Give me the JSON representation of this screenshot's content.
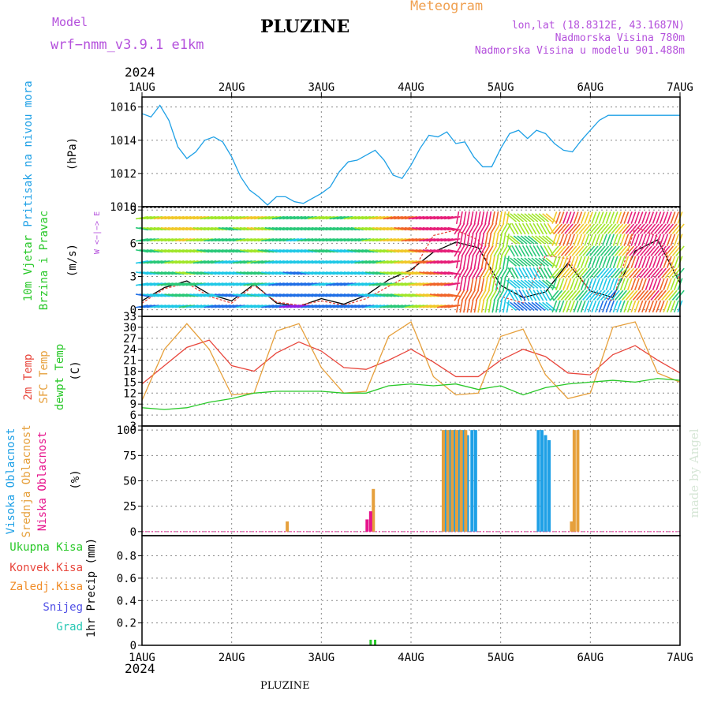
{
  "header": {
    "model_label": "Model",
    "model_name": "wrf−nmm_v3.9.1  e1km",
    "title": "PLUZINE",
    "subtitle": "Meteogram",
    "location_line": "lon,lat (18.8312E, 43.1687N)",
    "elevation_line": "Nadmorska Visina 780m",
    "model_elevation_line": "Nadmorska Visina u modelu 901.488m",
    "year_top": "2024",
    "year_bottom": "2024",
    "footer": "PLUZINE",
    "watermark": "made by Angel"
  },
  "colors": {
    "pressure": "#1ea0e6",
    "temp2m": "#e8463c",
    "sfc": "#e6a03c",
    "dewpt": "#28c828",
    "wind_label": "#28c828",
    "purple": "#b450dc",
    "orange": "#f0a050",
    "high_cloud": "#1ea0e6",
    "mid_cloud": "#e6a03c",
    "low_cloud": "#e6148c",
    "total_precip": "#28c828",
    "conv_precip": "#e8463c",
    "frozen": "#f08c28",
    "snow": "#5050e6",
    "hail": "#28c8b4",
    "grid": "#888888",
    "axes": "#000000"
  },
  "x_axis": {
    "ticks": [
      "1AUG",
      "2AUG",
      "3AUG",
      "4AUG",
      "5AUG",
      "6AUG",
      "7AUG"
    ]
  },
  "chart_data": [
    {
      "type": "line",
      "panel": "pressure",
      "ylabel_lines": [
        "Pritisak na nivou mora",
        "(hPa)"
      ],
      "ylim": [
        1010,
        1016.6
      ],
      "yticks": [
        1010,
        1012,
        1014,
        1016
      ],
      "grid": true,
      "series": [
        {
          "name": "Pritisak na nivou mora",
          "x": [
            0,
            0.1,
            0.2,
            0.3,
            0.4,
            0.5,
            0.6,
            0.7,
            0.8,
            0.9,
            1.0,
            1.1,
            1.2,
            1.3,
            1.4,
            1.5,
            1.6,
            1.7,
            1.8,
            1.9,
            2.0,
            2.1,
            2.2,
            2.3,
            2.4,
            2.5,
            2.6,
            2.7,
            2.8,
            2.9,
            3.0,
            3.1,
            3.2,
            3.3,
            3.4,
            3.5,
            3.6,
            3.7,
            3.8,
            3.9,
            4.0,
            4.1,
            4.2,
            4.3,
            4.4,
            4.5,
            4.6,
            4.7,
            4.8,
            4.9,
            5.0,
            5.1,
            5.2,
            5.3,
            5.4,
            5.5,
            5.6,
            5.7,
            5.8,
            5.9,
            6.0
          ],
          "values": [
            1015.6,
            1015.4,
            1016.1,
            1015.2,
            1013.6,
            1012.9,
            1013.3,
            1014.0,
            1014.2,
            1013.9,
            1013.0,
            1011.8,
            1011.0,
            1010.6,
            1010.1,
            1010.6,
            1010.6,
            1010.3,
            1010.2,
            1010.5,
            1010.8,
            1011.2,
            1012.1,
            1012.7,
            1012.8,
            1013.1,
            1013.4,
            1012.8,
            1011.9,
            1011.7,
            1012.5,
            1013.5,
            1014.3,
            1014.2,
            1014.5,
            1013.8,
            1013.9,
            1013.0,
            1012.4,
            1012.4,
            1013.5,
            1014.4,
            1014.6,
            1014.1,
            1014.6,
            1014.4,
            1013.8,
            1013.4,
            1013.3,
            1014.0,
            1014.6,
            1015.2,
            1015.5,
            1015.5,
            1015.5,
            1015.5,
            1015.5,
            1015.5,
            1015.5,
            1015.5,
            1015.5
          ]
        }
      ]
    },
    {
      "type": "line",
      "panel": "wind",
      "ylabel_lines": [
        "10m Vjetar",
        "Brzina i Pravac",
        "(m/s)"
      ],
      "compass_label": "W <−|−> E",
      "ylim": [
        -0.6,
        9.3
      ],
      "yticks": [
        0,
        3,
        6,
        9
      ],
      "grid": true,
      "series": [
        {
          "name": "Brzina",
          "x": [
            0,
            0.25,
            0.5,
            0.75,
            1.0,
            1.25,
            1.5,
            1.75,
            2.0,
            2.25,
            2.5,
            2.75,
            3.0,
            3.25,
            3.5,
            3.75,
            4.0,
            4.25,
            4.5,
            4.75,
            5.0,
            5.25,
            5.5,
            5.75,
            6.0
          ],
          "values": [
            0.8,
            2.0,
            2.6,
            1.4,
            0.8,
            2.3,
            0.6,
            0.3,
            1.0,
            0.5,
            1.3,
            2.7,
            3.6,
            5.2,
            6.1,
            5.6,
            2.2,
            1.1,
            1.6,
            4.2,
            1.7,
            1.1,
            5.3,
            6.3,
            2.4
          ]
        },
        {
          "name": "Udari",
          "x": [
            0,
            0.25,
            0.5,
            0.75,
            1.0,
            1.25,
            1.5,
            1.75,
            2.0,
            2.25,
            2.5,
            2.75,
            3.0,
            3.25,
            3.5,
            3.75,
            4.0,
            4.25,
            4.5,
            4.75,
            5.0,
            5.25,
            5.5,
            5.75,
            6.0
          ],
          "values": [
            0.6,
            1.9,
            2.4,
            1.2,
            0.6,
            2.2,
            0.7,
            0.4,
            0.8,
            0.4,
            1.0,
            2.1,
            3.2,
            6.7,
            7.2,
            6.3,
            1.2,
            0.6,
            4.9,
            4.6,
            1.6,
            0.8,
            7.5,
            6.6,
            2.7
          ]
        }
      ]
    },
    {
      "type": "line",
      "panel": "temperature",
      "ylabel_lines": [
        "2m Temp",
        "SFC Temp",
        "dewpt Temp",
        "(C)"
      ],
      "ylim": [
        3,
        33
      ],
      "yticks": [
        3,
        6,
        9,
        12,
        15,
        18,
        21,
        24,
        27,
        30,
        33
      ],
      "grid": true,
      "series": [
        {
          "name": "2m Temp",
          "x": [
            0,
            0.25,
            0.5,
            0.75,
            1.0,
            1.25,
            1.5,
            1.75,
            2.0,
            2.25,
            2.5,
            2.75,
            3.0,
            3.25,
            3.5,
            3.75,
            4.0,
            4.25,
            4.5,
            4.75,
            5.0,
            5.25,
            5.5,
            5.75,
            6.0
          ],
          "values": [
            14.5,
            19.5,
            24.5,
            26.5,
            19.5,
            18.0,
            23.0,
            26.0,
            23.5,
            19.0,
            18.5,
            21.0,
            24.0,
            20.5,
            16.5,
            16.5,
            21.0,
            24.0,
            22.0,
            17.5,
            17.0,
            22.5,
            25.0,
            21.0,
            17.5
          ]
        },
        {
          "name": "SFC Temp",
          "x": [
            0,
            0.25,
            0.5,
            0.75,
            1.0,
            1.25,
            1.5,
            1.75,
            2.0,
            2.25,
            2.5,
            2.75,
            3.0,
            3.25,
            3.5,
            3.75,
            4.0,
            4.25,
            4.5,
            4.75,
            5.0,
            5.25,
            5.5,
            5.75,
            6.0
          ],
          "values": [
            10.0,
            24.0,
            31.0,
            24.0,
            11.5,
            12.0,
            29.0,
            31.0,
            19.0,
            12.0,
            12.5,
            27.5,
            31.5,
            16.5,
            11.5,
            12.0,
            27.5,
            29.5,
            17.0,
            10.5,
            12.0,
            30.0,
            31.5,
            17.5,
            15.0
          ]
        },
        {
          "name": "dewpt Temp",
          "x": [
            0,
            0.25,
            0.5,
            0.75,
            1.0,
            1.25,
            1.5,
            1.75,
            2.0,
            2.25,
            2.5,
            2.75,
            3.0,
            3.25,
            3.5,
            3.75,
            4.0,
            4.25,
            4.5,
            4.75,
            5.0,
            5.25,
            5.5,
            5.75,
            6.0
          ],
          "values": [
            8.0,
            7.5,
            8.0,
            9.5,
            10.5,
            12.0,
            12.5,
            12.5,
            12.5,
            12.0,
            12.0,
            14.0,
            14.5,
            14.0,
            14.5,
            13.0,
            14.0,
            11.5,
            13.5,
            14.5,
            15.0,
            15.5,
            15.0,
            16.0,
            15.5
          ]
        }
      ]
    },
    {
      "type": "bar",
      "panel": "cloud",
      "ylabel_lines": [
        "Visoka Oblacnost",
        "Srednja Oblacnost",
        "Niska Oblacnost",
        "(%)"
      ],
      "ylim": [
        -4,
        104
      ],
      "yticks": [
        0,
        25,
        50,
        75,
        100
      ],
      "grid": true,
      "series": [
        {
          "name": "Visoka Oblacnost",
          "x": [
            3.38,
            3.43,
            3.48,
            3.53,
            3.58,
            3.63,
            3.68,
            3.72,
            4.42,
            4.46,
            4.5,
            4.54
          ],
          "values": [
            100,
            100,
            100,
            100,
            100,
            95,
            100,
            100,
            100,
            100,
            95,
            90
          ]
        },
        {
          "name": "Srednja Oblacnost",
          "x": [
            1.62,
            2.58,
            3.36,
            3.41,
            3.46,
            3.51,
            3.56,
            3.61,
            4.79,
            4.82,
            4.86
          ],
          "values": [
            10,
            42,
            100,
            100,
            100,
            100,
            100,
            100,
            10,
            100,
            100
          ]
        },
        {
          "name": "Niska Oblacnost",
          "x": [
            2.51,
            2.55
          ],
          "values": [
            12,
            20
          ]
        }
      ]
    },
    {
      "type": "bar",
      "panel": "precip",
      "ylabel_lines": [
        "1hr Precip (mm)"
      ],
      "legend": [
        "Ukupna Kisa",
        "Konvek.Kisa",
        "Zaledj.Kisa",
        "Snijeg",
        "Grad"
      ],
      "ylim": [
        0,
        0.98
      ],
      "yticks": [
        0,
        0.2,
        0.4,
        0.6,
        0.8
      ],
      "grid": true,
      "series": [
        {
          "name": "Ukupna Kisa",
          "x": [
            2.55,
            2.6
          ],
          "values": [
            0.05,
            0.05
          ]
        }
      ]
    }
  ]
}
